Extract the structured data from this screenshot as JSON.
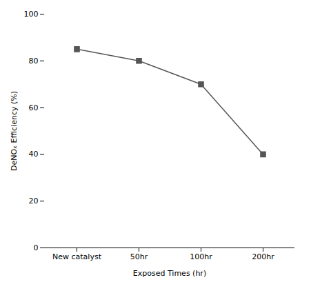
{
  "chart_data": {
    "type": "line",
    "categories": [
      "New catalyst",
      "50hr",
      "100hr",
      "200hr"
    ],
    "values": [
      85,
      80,
      70,
      40
    ],
    "xlabel": "Exposed Times (hr)",
    "ylabel": "DeNOₓ Efficiency (%)",
    "ylim": [
      0,
      100
    ],
    "yticks": [
      0,
      20,
      40,
      60,
      80,
      100
    ],
    "color": "#555555",
    "marker": "square",
    "grid": false
  }
}
